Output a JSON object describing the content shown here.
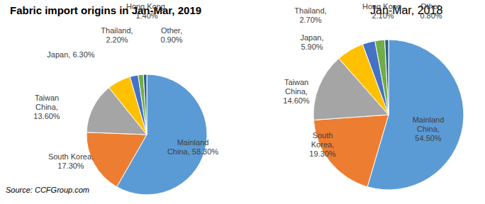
{
  "chart_data": [
    {
      "type": "pie",
      "title": "Fabric import origins in Jan-Mar, 2019",
      "categories": [
        "Mainland China",
        "South Korea",
        "Taiwan China",
        "Japan",
        "Thailand",
        "Hong Kong",
        "Other"
      ],
      "values": [
        58.3,
        17.3,
        13.6,
        6.3,
        2.2,
        1.4,
        0.9
      ],
      "colors": [
        "#5B9BD5",
        "#ED7D31",
        "#A5A5A5",
        "#FFC000",
        "#4472C4",
        "#70AD47",
        "#255E91"
      ],
      "data_labels": true,
      "value_labels": [
        "Mainland China, 58.30%",
        "South Korea, 17.30%",
        "Taiwan China, 13.60%",
        "Japan, 6.30%",
        "Thailand, 2.20%",
        "Hong Kong, 1.40%",
        "Other, 0.90%"
      ],
      "annotations": [
        "Source: CCFGroup.com"
      ]
    },
    {
      "type": "pie",
      "title": "Jan-Mar, 2018",
      "categories": [
        "Mainland China",
        "South Korea",
        "Taiwan China",
        "Japan",
        "Thailand",
        "Hong Kong",
        "Other"
      ],
      "values": [
        54.5,
        19.3,
        14.6,
        5.9,
        2.7,
        2.1,
        0.8
      ],
      "colors": [
        "#5B9BD5",
        "#ED7D31",
        "#A5A5A5",
        "#FFC000",
        "#4472C4",
        "#70AD47",
        "#255E91"
      ],
      "data_labels": true,
      "value_labels": [
        "Mainland China, 54.50%",
        "South Korea, 19.30%",
        "Taiwan China, 14.60%",
        "Japan, 5.90%",
        "Thailand, 2.70%",
        "Hong Kong, 2.10%",
        "Other, 0.80%"
      ]
    }
  ]
}
